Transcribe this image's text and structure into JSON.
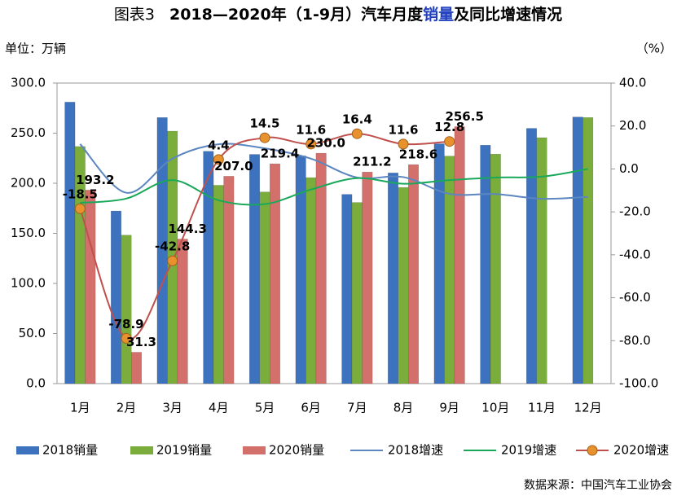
{
  "chart_data": {
    "type": "bar",
    "title_parts": [
      "图表3",
      "2018—2020年（1-9月）汽车月度",
      "销量",
      "及同比增速情况"
    ],
    "y_unit": "单位：万辆",
    "y2_unit": "（%）",
    "source": "数据来源：中国汽车工业协会",
    "categories": [
      "1月",
      "2月",
      "3月",
      "4月",
      "5月",
      "6月",
      "7月",
      "8月",
      "9月",
      "10月",
      "11月",
      "12月"
    ],
    "ylim": [
      0,
      300
    ],
    "yticks": [
      {
        "value": 0,
        "label": "0.0"
      },
      {
        "value": 50,
        "label": "50.0"
      },
      {
        "value": 100,
        "label": "100.0"
      },
      {
        "value": 150,
        "label": "150.0"
      },
      {
        "value": 200,
        "label": "200.0"
      },
      {
        "value": 250,
        "label": "250.0"
      },
      {
        "value": 300,
        "label": "300.0"
      }
    ],
    "y2lim": [
      -100,
      40
    ],
    "y2ticks": [
      {
        "value": -100,
        "label": "-100.0"
      },
      {
        "value": -80,
        "label": "-80.0"
      },
      {
        "value": -60,
        "label": "-60.0"
      },
      {
        "value": -40,
        "label": "-40.0"
      },
      {
        "value": -20,
        "label": "-20.0"
      },
      {
        "value": 0,
        "label": "0.0"
      },
      {
        "value": 20,
        "label": "20.0"
      },
      {
        "value": 40,
        "label": "40.0"
      }
    ],
    "series": [
      {
        "name": "2018销量",
        "type": "bar",
        "color": "#3d72bf",
        "values": [
          281,
          172.3,
          265.6,
          231.9,
          228.8,
          227.4,
          188.9,
          210.3,
          239.4,
          238,
          254.8,
          266.1
        ]
      },
      {
        "name": "2019销量",
        "type": "bar",
        "color": "#7aad3c",
        "values": [
          236.7,
          148.2,
          252,
          198,
          191.3,
          205.6,
          180.8,
          195.8,
          227.1,
          229.1,
          245.5,
          265.6
        ]
      },
      {
        "name": "2020销量",
        "type": "bar",
        "color": "#d4706b",
        "values": [
          193.2,
          31.3,
          144.3,
          207,
          219.4,
          230,
          211.2,
          218.6,
          256.5,
          null,
          null,
          null
        ],
        "value_labels": [
          "193.2",
          "31.3",
          "144.3",
          "207.0",
          "219.4",
          "230.0",
          "211.2",
          "218.6",
          "256.5",
          null,
          null,
          null
        ]
      },
      {
        "name": "2018增速",
        "type": "line",
        "axis": "y2",
        "color": "#5b86c0",
        "values": [
          11.6,
          -11.1,
          4.8,
          11.5,
          9.6,
          4.8,
          -4,
          -3.8,
          -11.6,
          -11.7,
          -13.9,
          -13
        ]
      },
      {
        "name": "2019增速",
        "type": "line",
        "axis": "y2",
        "color": "#1aa85a",
        "values": [
          -15.8,
          -13.8,
          -5.2,
          -14.6,
          -16.4,
          -9.6,
          -4.3,
          -6.9,
          -5.2,
          -4,
          -3.6,
          0
        ]
      },
      {
        "name": "2020增速",
        "type": "line",
        "axis": "y2",
        "color": "#c0504d",
        "marker": "#e8922e",
        "values": [
          -18.5,
          -78.9,
          -42.8,
          4.4,
          14.5,
          11.6,
          16.4,
          11.6,
          12.8,
          null,
          null,
          null
        ],
        "value_labels": [
          "-18.5",
          "-78.9",
          "-42.8",
          "4.4",
          "14.5",
          "11.6",
          "16.4",
          "11.6",
          "12.8",
          null,
          null,
          null
        ]
      }
    ]
  }
}
